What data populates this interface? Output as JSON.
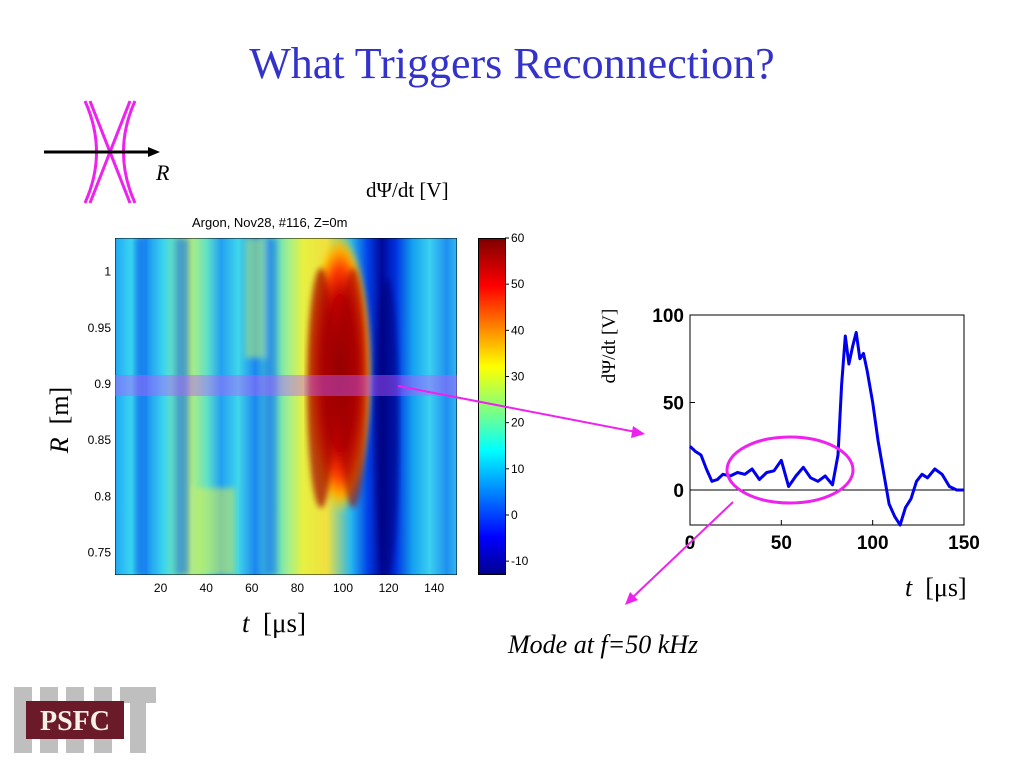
{
  "slide": {
    "title": "What Triggers Reconnection?",
    "inset_label": "R",
    "colorbar_quantity": "dΨ/dt  [V]",
    "heatmap_title": "Argon, Nov28, #116, Z=0m",
    "heatmap_ylabel_var": "R",
    "heatmap_ylabel_unit": "[m]",
    "heatmap_xlabel_var": "t",
    "heatmap_xlabel_unit": "[μs]",
    "line_ylabel": "dΨ/dt [V]",
    "line_xlabel_var": "t",
    "line_xlabel_unit": "[μs]",
    "annotation": "Mode at f=50 kHz",
    "logo_text": "PSFC"
  },
  "colors": {
    "title": "#3333cc",
    "line": "#0000ee",
    "arrow": "#ee22ee"
  },
  "chart_data": [
    {
      "type": "heatmap",
      "title": "Argon, Nov28, #116, Z=0m",
      "xlabel": "t [μs]",
      "ylabel": "R [m]",
      "xlim": [
        0,
        150
      ],
      "ylim": [
        0.73,
        1.03
      ],
      "xticks": [
        20,
        40,
        60,
        80,
        100,
        120,
        140
      ],
      "yticks": [
        0.75,
        0.8,
        0.85,
        0.9,
        0.95,
        1
      ],
      "colorbar_label": "dΨ/dt [V]",
      "colorbar_range": [
        -13,
        60
      ],
      "colorbar_ticks": [
        -10,
        0,
        10,
        20,
        30,
        40,
        50,
        60
      ],
      "highlight_band_R": [
        0.89,
        0.91
      ]
    },
    {
      "type": "line",
      "xlabel": "t [μs]",
      "ylabel": "dΨ/dt [V]",
      "xlim": [
        0,
        150
      ],
      "ylim": [
        -20,
        100
      ],
      "xticks": [
        0,
        50,
        100,
        150
      ],
      "yticks": [
        0,
        50,
        100
      ],
      "series": [
        {
          "x": [
            0,
            3,
            6,
            9,
            12,
            15,
            18,
            22,
            26,
            30,
            34,
            38,
            42,
            46,
            50,
            54,
            58,
            62,
            66,
            70,
            74,
            78,
            81,
            83,
            85,
            87,
            89,
            91,
            93,
            95,
            97,
            100,
            103,
            106,
            109,
            112,
            115,
            118,
            121,
            124,
            127,
            130,
            134,
            138,
            142,
            146,
            150
          ],
          "y": [
            25,
            22,
            20,
            12,
            5,
            6,
            9,
            8,
            10,
            9,
            12,
            6,
            10,
            11,
            17,
            2,
            8,
            13,
            7,
            5,
            8,
            3,
            20,
            60,
            88,
            72,
            82,
            90,
            75,
            78,
            68,
            50,
            28,
            10,
            -8,
            -15,
            -20,
            -10,
            -5,
            5,
            9,
            7,
            12,
            9,
            2,
            0,
            0
          ]
        }
      ]
    }
  ]
}
